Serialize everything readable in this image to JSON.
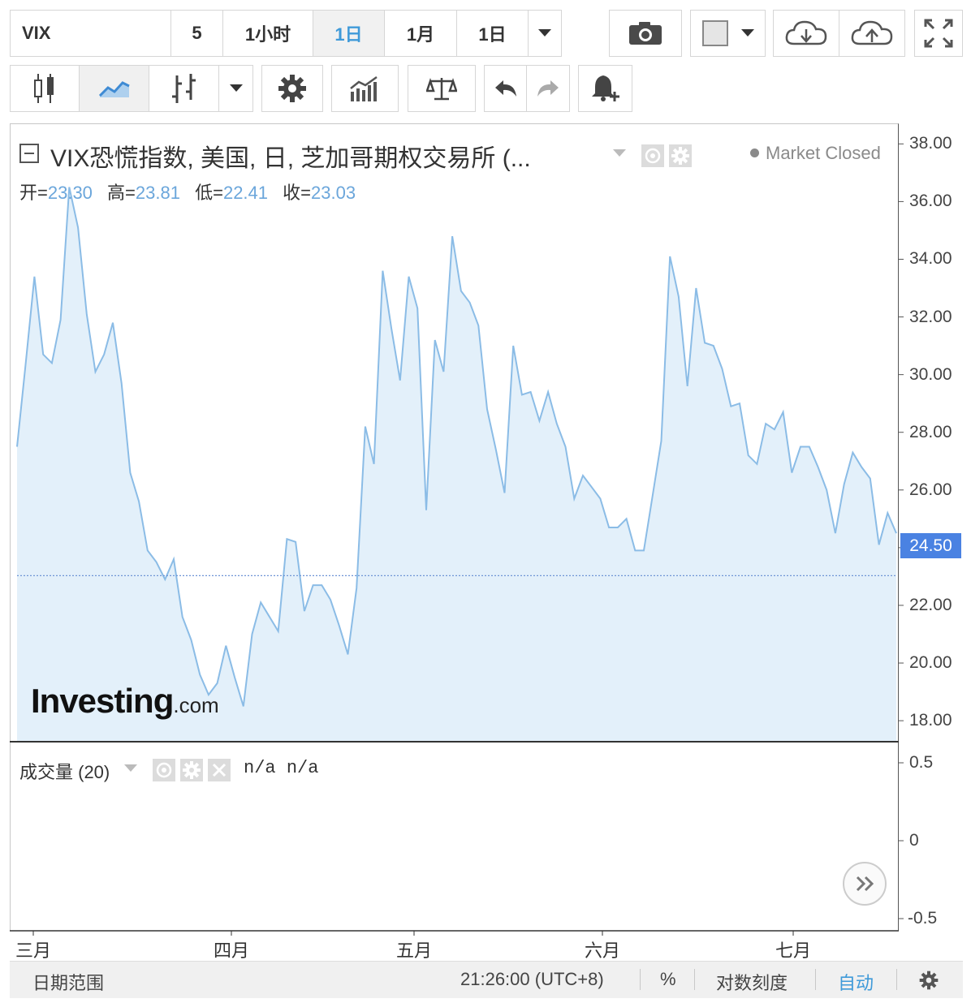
{
  "toolbar": {
    "symbol": "VIX",
    "interval_5": "5",
    "interval_1h": "1小时",
    "interval_1d": "1日",
    "interval_1m": "1月",
    "range_1d": "1日"
  },
  "legend": {
    "title": "VIX恐慌指数, 美国, 日, 芝加哥期权交易所 (...",
    "open_label": "开=",
    "open": "23.30",
    "high_label": "高=",
    "high": "23.81",
    "low_label": "低=",
    "low": "22.41",
    "close_label": "收=",
    "close": "23.03",
    "market_status": "Market Closed"
  },
  "price_tag": "24.50",
  "volume": {
    "label": "成交量 (20)",
    "value1": "n/a",
    "value2": "n/a",
    "y_ticks": [
      "0.5",
      "0",
      "-0.5"
    ]
  },
  "logo": {
    "main": "Investing",
    "domain": ".com"
  },
  "bottom": {
    "date_range": "日期范围",
    "time": "21:26:00 (UTC+8)",
    "percent": "%",
    "log_scale": "对数刻度",
    "auto": "自动"
  },
  "chart_data": {
    "type": "area",
    "x_labels": [
      "三月",
      "四月",
      "五月",
      "六月",
      "七月"
    ],
    "y_ticks": [
      "38.00",
      "36.00",
      "34.00",
      "32.00",
      "30.00",
      "28.00",
      "26.00",
      "24.00",
      "22.00",
      "20.00",
      "18.00"
    ],
    "ylim": [
      17.3,
      38.6
    ],
    "reference_line": 23.03,
    "series": [
      {
        "values": [
          27.5,
          30.4,
          33.4,
          30.7,
          30.4,
          31.9,
          36.5,
          35.1,
          32.1,
          30.1,
          30.7,
          31.8,
          29.7,
          26.6,
          25.6,
          23.9,
          23.5,
          22.9,
          23.6,
          21.6,
          20.8,
          19.6,
          18.9,
          19.3,
          20.6,
          19.5,
          18.5,
          21.0,
          22.1,
          21.6,
          21.1,
          24.3,
          24.2,
          21.8,
          22.7,
          22.7,
          22.2,
          21.3,
          20.3,
          22.6,
          28.2,
          26.9,
          33.6,
          31.6,
          29.8,
          33.4,
          32.3,
          25.3,
          31.2,
          30.1,
          34.8,
          32.9,
          32.5,
          31.7,
          28.8,
          27.4,
          25.9,
          31.0,
          29.3,
          29.4,
          28.4,
          29.4,
          28.3,
          27.5,
          25.7,
          26.5,
          26.1,
          25.7,
          24.7,
          24.7,
          25.0,
          23.9,
          23.9,
          25.8,
          27.7,
          34.1,
          32.7,
          29.6,
          33.0,
          31.1,
          31.0,
          30.2,
          28.9,
          29.0,
          27.2,
          26.9,
          28.3,
          28.1,
          28.7,
          26.6,
          27.5,
          27.5,
          26.8,
          26.0,
          24.5,
          26.2,
          27.3,
          26.8,
          26.4,
          24.1,
          25.2,
          24.5
        ]
      }
    ],
    "grid": false
  }
}
